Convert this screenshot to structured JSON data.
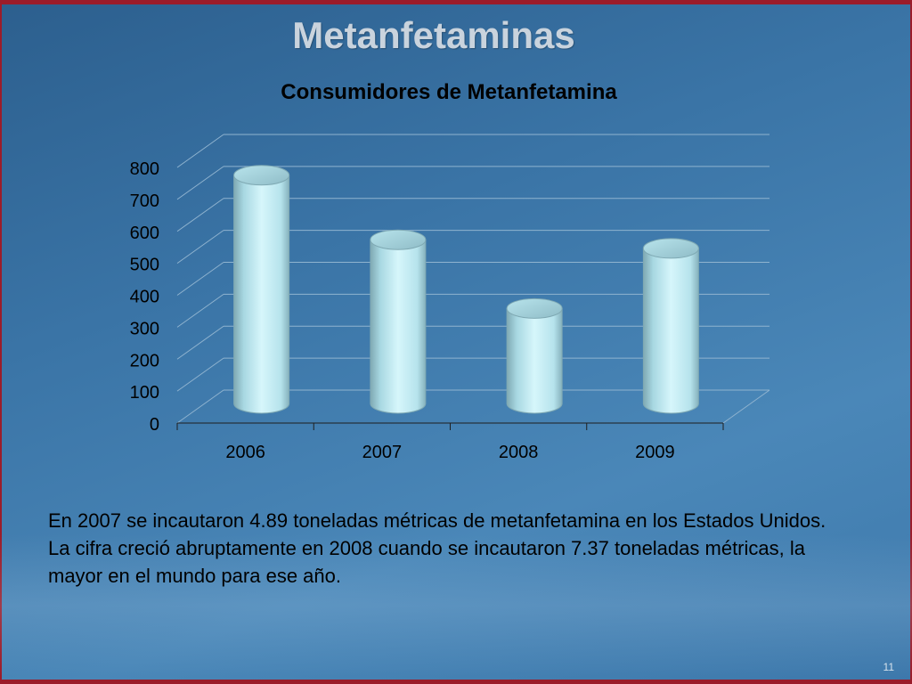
{
  "slide": {
    "title": "Metanfetaminas",
    "body_text": "En 2007 se incautaron 4.89 toneladas métricas de metanfetamina en los Estados Unidos.  La cifra creció abruptamente en 2008 cuando se incautaron 7.37 toneladas métricas, la mayor en el mundo para ese año.",
    "number": "11"
  },
  "chart_data": {
    "type": "bar",
    "title": "Consumidores de Metanfetamina",
    "xlabel": "",
    "ylabel": "",
    "categories": [
      "2006",
      "2007",
      "2008",
      "2009"
    ],
    "values": [
      731,
      529,
      314,
      502
    ],
    "ylim": [
      0,
      800
    ],
    "yticks": [
      "0",
      "100",
      "200",
      "300",
      "400",
      "500",
      "600",
      "700",
      "800"
    ],
    "grid": true,
    "style": "3d-cylinder",
    "colors": {
      "bar": "#c4eef5",
      "bar_edge": "#7fa9b3",
      "grid": "#8fb3cf",
      "axis_text": "#000000"
    }
  }
}
